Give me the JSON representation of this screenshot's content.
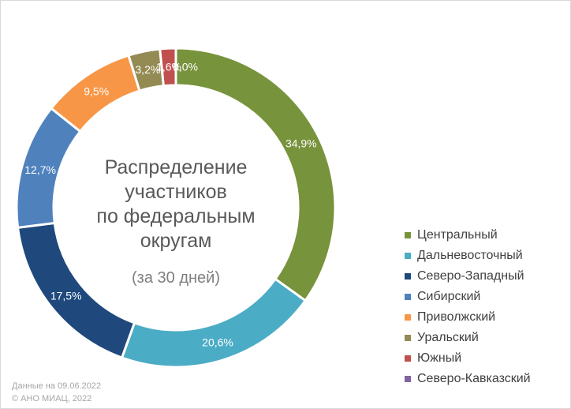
{
  "chart_data": {
    "type": "pie",
    "variant": "donut",
    "title_lines": [
      "Распределение",
      "участников",
      "по федеральным",
      "округам"
    ],
    "subtitle": "(за 30 дней)",
    "legend_position": "right",
    "slices": [
      {
        "label": "Центральный",
        "value": 34.9,
        "display": "34,9%",
        "color": "#77933c"
      },
      {
        "label": "Дальневосточный",
        "value": 20.6,
        "display": "20,6%",
        "color": "#4bacc6"
      },
      {
        "label": "Северо-Западный",
        "value": 17.5,
        "display": "17,5%",
        "color": "#1f497d"
      },
      {
        "label": "Сибирский",
        "value": 12.7,
        "display": "12,7%",
        "color": "#4f81bd"
      },
      {
        "label": "Приволжский",
        "value": 9.5,
        "display": "9,5%",
        "color": "#f79646"
      },
      {
        "label": "Уральский",
        "value": 3.2,
        "display": "3,2%",
        "color": "#948a54"
      },
      {
        "label": "Южный",
        "value": 1.6,
        "display": "1,6%",
        "color": "#c0504d"
      },
      {
        "label": "Северо-Кавказский",
        "value": 0.0,
        "display": "0,0%",
        "color": "#8064a2"
      }
    ]
  },
  "footer": {
    "date_line": "Данные на 09.06.2022",
    "copyright_line": "© АНО МИАЦ, 2022"
  }
}
